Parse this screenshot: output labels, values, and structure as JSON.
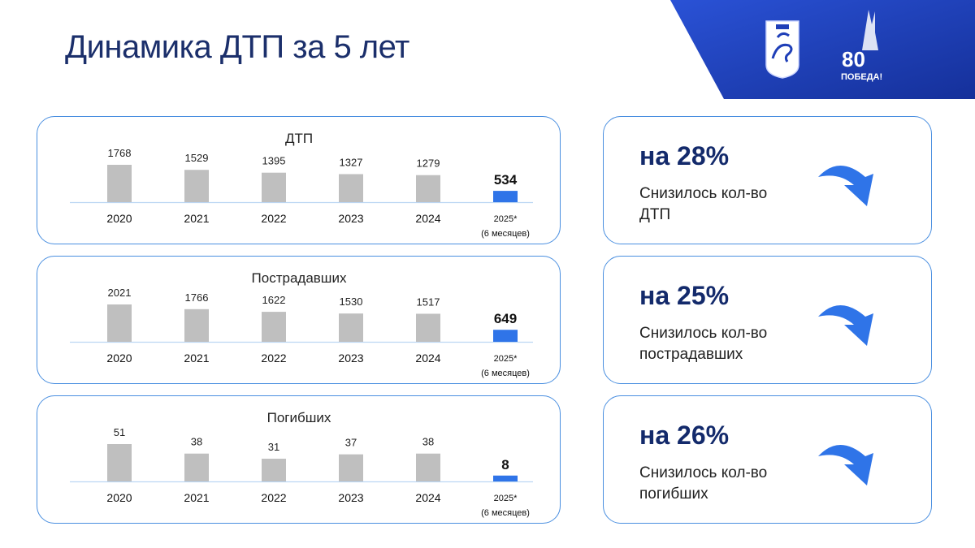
{
  "title": "Динамика ДТП за 5 лет",
  "colors": {
    "accent": "#2f74e8",
    "bar": "#bfbfbf",
    "title": "#1b2f6b",
    "brand_blue": "#1f3fb8"
  },
  "logos": [
    {
      "icon": "kazan-coat-of-arms-icon"
    },
    {
      "icon": "victory-80-icon",
      "text": "80",
      "subtext": "ПОБЕДА!"
    }
  ],
  "chart_data": [
    {
      "type": "bar",
      "title": "ДТП",
      "categories": [
        "2020",
        "2021",
        "2022",
        "2023",
        "2024",
        "2025*"
      ],
      "sublabel_last": "(6 месяцев)",
      "values": [
        1768,
        1529,
        1395,
        1327,
        1279,
        534
      ],
      "highlight_index": 5
    },
    {
      "type": "bar",
      "title": "Пострадавших",
      "categories": [
        "2020",
        "2021",
        "2022",
        "2023",
        "2024",
        "2025*"
      ],
      "sublabel_last": "(6 месяцев)",
      "values": [
        2021,
        1766,
        1622,
        1530,
        1517,
        649
      ],
      "highlight_index": 5
    },
    {
      "type": "bar",
      "title": "Погибших",
      "categories": [
        "2020",
        "2021",
        "2022",
        "2023",
        "2024",
        "2025*"
      ],
      "sublabel_last": "(6 месяцев)",
      "values": [
        51,
        38,
        31,
        37,
        38,
        8
      ],
      "highlight_index": 5
    }
  ],
  "stats": [
    {
      "value": "на 28%",
      "desc": "Снизилось кол-во ДТП",
      "icon": "curved-arrow-down-icon"
    },
    {
      "value": "на 25%",
      "desc": "Снизилось кол-во пострадавших",
      "icon": "curved-arrow-down-icon"
    },
    {
      "value": "на 26%",
      "desc": "Снизилось кол-во погибших",
      "icon": "curved-arrow-down-icon"
    }
  ]
}
